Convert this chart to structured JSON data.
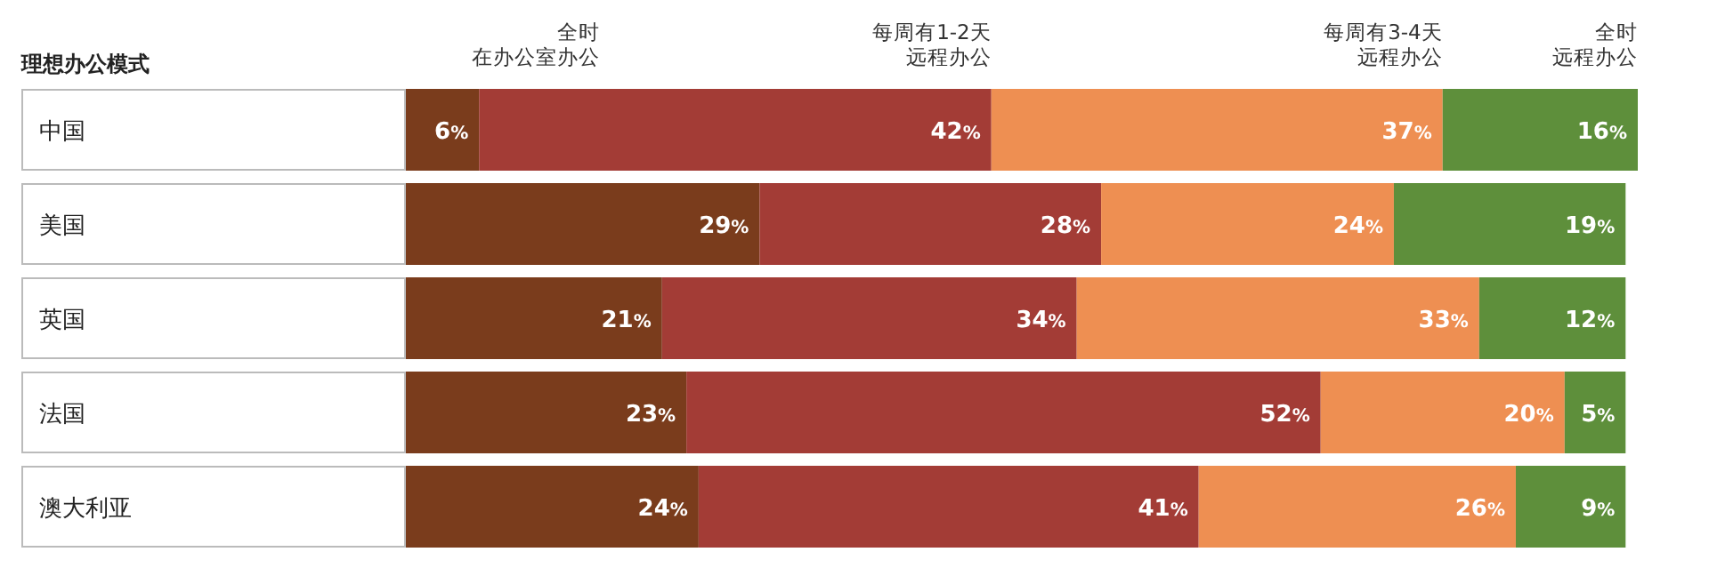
{
  "chart_data": {
    "type": "bar",
    "orientation": "horizontal",
    "stacked": true,
    "legend": "top",
    "ylabel": "理想办公模式",
    "categories": [
      "中国",
      "美国",
      "英国",
      "法国",
      "澳大利亚"
    ],
    "series": [
      {
        "name": "全时在办公室办公",
        "color": "#7a3c1c",
        "values": [
          6,
          29,
          21,
          23,
          24
        ],
        "value_labels": [
          "6%",
          "29%",
          "21%",
          "23%",
          "24%"
        ]
      },
      {
        "name": "每周有1-2天远程办公",
        "color": "#a33c36",
        "values": [
          42,
          28,
          34,
          52,
          41
        ],
        "value_labels": [
          "42%",
          "28%",
          "34%",
          "52%",
          "41%"
        ]
      },
      {
        "name": "每周有3-4天远程办公",
        "color": "#ee8f52",
        "values": [
          37,
          24,
          33,
          20,
          26
        ],
        "value_labels": [
          "37%",
          "24%",
          "33%",
          "20%",
          "26%"
        ]
      },
      {
        "name": "全时远程办公",
        "color": "#5e8f3b",
        "values": [
          16,
          19,
          12,
          5,
          9
        ],
        "value_labels": [
          "16%",
          "19%",
          "12%",
          "5%",
          "9%"
        ]
      }
    ]
  }
}
